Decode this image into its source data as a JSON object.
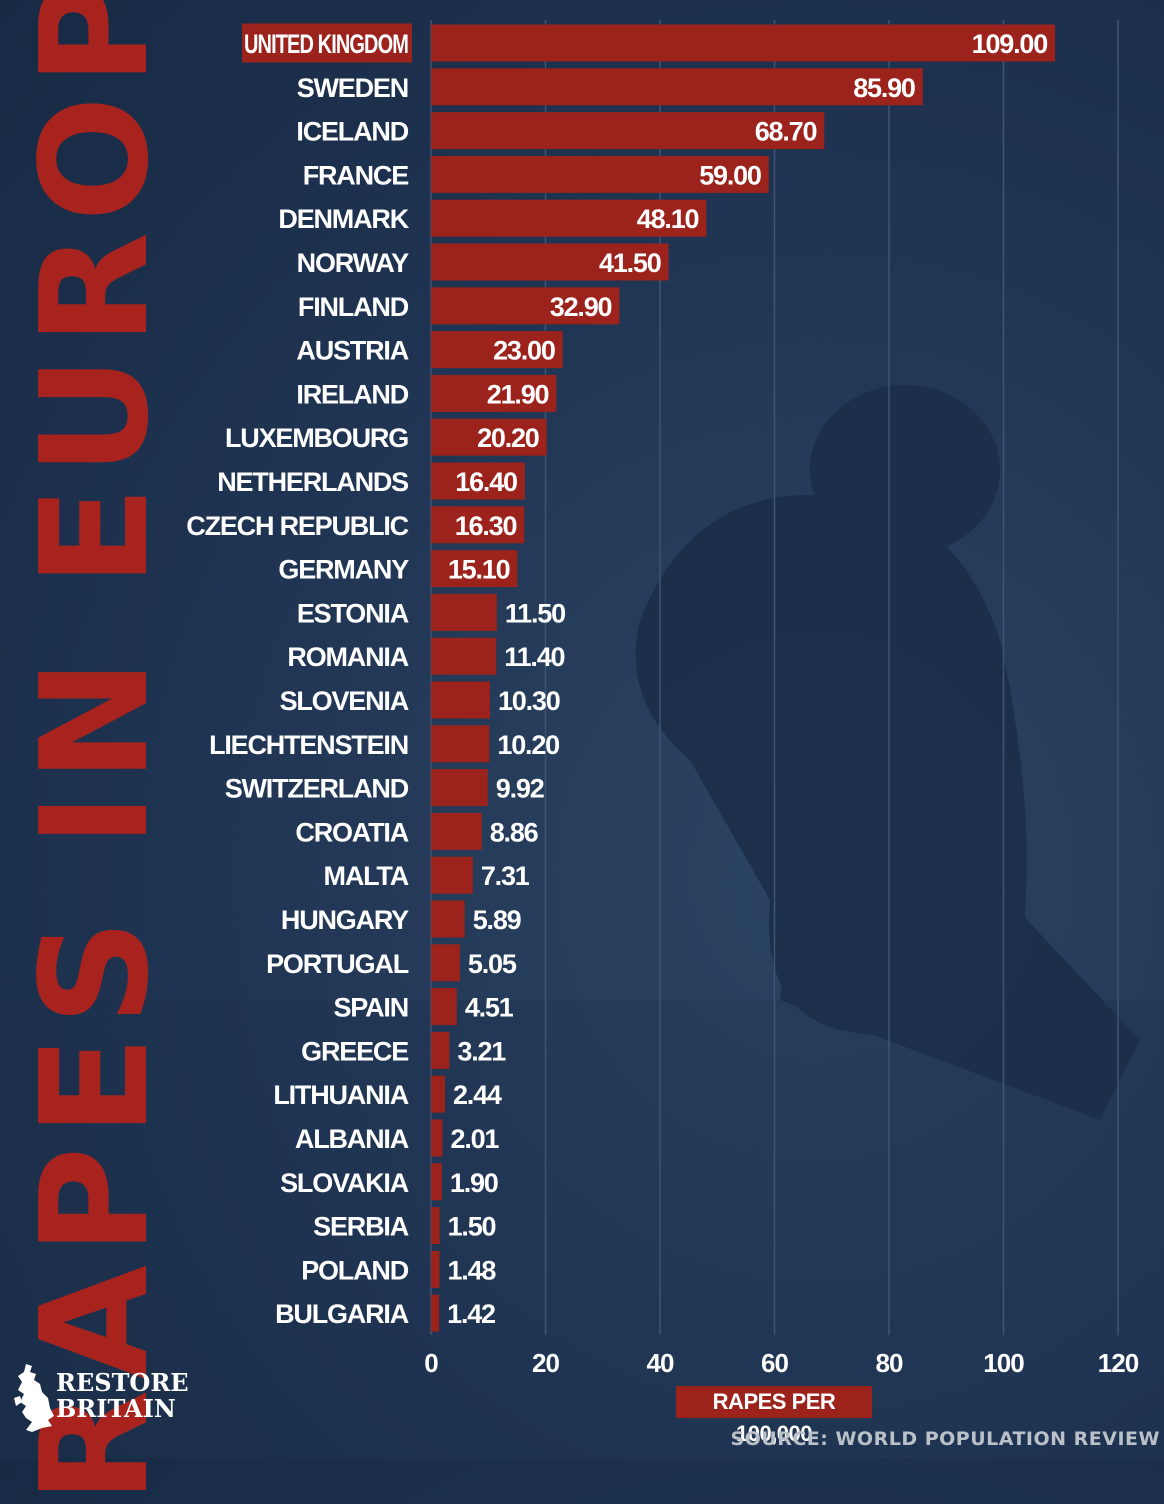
{
  "title": "RAPES IN EUROPE",
  "brand": {
    "line1": "RESTORE",
    "line2": "BRITAIN"
  },
  "source": "SOURCE: WORLD POPULATION REVIEW",
  "colors": {
    "bar": "#9c221c",
    "background": "#1f3452",
    "text": "#ffffff",
    "title": "#a8231d"
  },
  "chart_data": {
    "type": "bar",
    "orientation": "horizontal",
    "title": "RAPES IN EUROPE",
    "xlabel": "RAPES PER 100,000",
    "ylabel": "",
    "xlim": [
      0,
      120
    ],
    "xticks": [
      "0",
      "20",
      "40",
      "60",
      "80",
      "100",
      "120"
    ],
    "grid": true,
    "highlighted_category": "UNITED KINGDOM",
    "categories": [
      "UNITED KINGDOM",
      "SWEDEN",
      "ICELAND",
      "FRANCE",
      "DENMARK",
      "NORWAY",
      "FINLAND",
      "AUSTRIA",
      "IRELAND",
      "LUXEMBOURG",
      "NETHERLANDS",
      "CZECH REPUBLIC",
      "GERMANY",
      "ESTONIA",
      "ROMANIA",
      "SLOVENIA",
      "LIECHTENSTEIN",
      "SWITZERLAND",
      "CROATIA",
      "MALTA",
      "HUNGARY",
      "PORTUGAL",
      "SPAIN",
      "GREECE",
      "LITHUANIA",
      "ALBANIA",
      "SLOVAKIA",
      "SERBIA",
      "POLAND",
      "BULGARIA"
    ],
    "values": [
      109.0,
      85.9,
      68.7,
      59.0,
      48.1,
      41.5,
      32.9,
      23.0,
      21.9,
      20.2,
      16.4,
      16.3,
      15.1,
      11.5,
      11.4,
      10.3,
      10.2,
      9.92,
      8.86,
      7.31,
      5.89,
      5.05,
      4.51,
      3.21,
      2.44,
      2.01,
      1.9,
      1.5,
      1.48,
      1.42
    ],
    "value_labels": [
      "109.00",
      "85.90",
      "68.70",
      "59.00",
      "48.10",
      "41.50",
      "32.90",
      "23.00",
      "21.90",
      "20.20",
      "16.40",
      "16.30",
      "15.10",
      "11.50",
      "11.40",
      "10.30",
      "10.20",
      "9.92",
      "8.86",
      "7.31",
      "5.89",
      "5.05",
      "4.51",
      "3.21",
      "2.44",
      "2.01",
      "1.90",
      "1.50",
      "1.48",
      "1.42"
    ]
  }
}
